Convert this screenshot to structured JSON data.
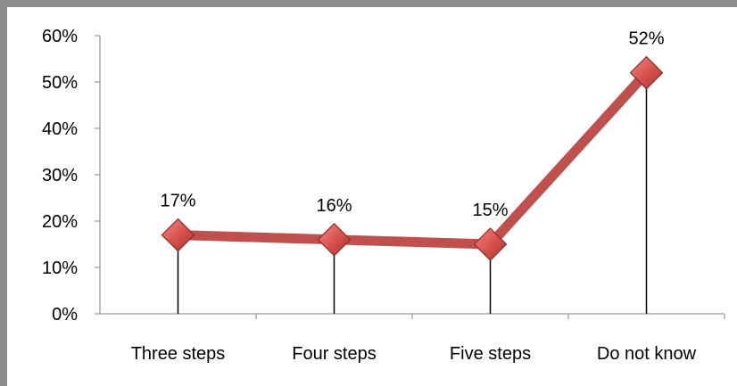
{
  "chart_data": {
    "type": "line",
    "title": "",
    "xlabel": "",
    "ylabel": "",
    "categories": [
      "Three steps",
      "Four steps",
      "Five steps",
      "Do not know"
    ],
    "series": [
      {
        "values": [
          17,
          16,
          15,
          52
        ],
        "labels": [
          "17%",
          "16%",
          "15%",
          "52%"
        ]
      }
    ],
    "ylim": [
      0,
      60
    ],
    "yticks": [
      0,
      10,
      20,
      30,
      40,
      50,
      60
    ],
    "ytick_labels": [
      "0%",
      "10%",
      "20%",
      "30%",
      "40%",
      "50%",
      "60%"
    ],
    "grid": false,
    "drop_lines": true,
    "colors": {
      "line": "#c0504d",
      "marker": "#d9534f",
      "drop_line": "#000000",
      "axis": "#868686"
    }
  }
}
